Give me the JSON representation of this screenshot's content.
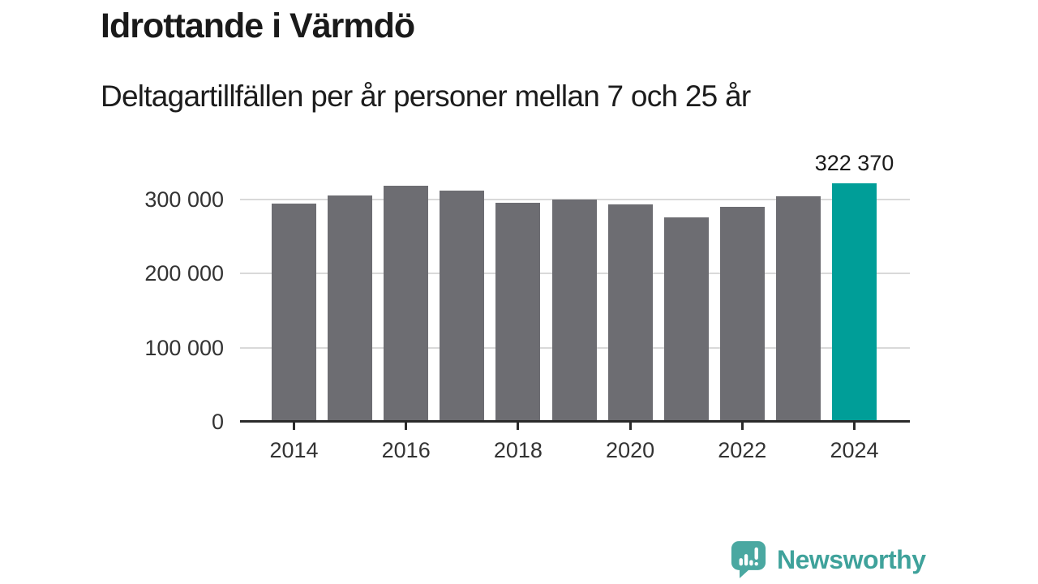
{
  "header": {
    "title": "Idrottande i Värmdö",
    "subtitle": "Deltagartillfällen per år personer mellan 7 och 25 år"
  },
  "chart_data": {
    "type": "bar",
    "title": "Idrottande i Värmdö",
    "subtitle": "Deltagartillfällen per år personer mellan 7 och 25 år",
    "categories": [
      2014,
      2015,
      2016,
      2017,
      2018,
      2019,
      2020,
      2021,
      2022,
      2023,
      2024
    ],
    "values": [
      294000,
      305000,
      319000,
      312000,
      295500,
      299500,
      293000,
      275500,
      290500,
      304500,
      322370
    ],
    "highlight_index": 10,
    "highlight_annotation": "322 370",
    "x_tick_labels": [
      "2014",
      "2016",
      "2018",
      "2020",
      "2022",
      "2024"
    ],
    "y_ticks": [
      {
        "value": 0,
        "label": "0"
      },
      {
        "value": 100000,
        "label": "100 000"
      },
      {
        "value": 200000,
        "label": "200 000"
      },
      {
        "value": 300000,
        "label": "300 000"
      }
    ],
    "ylim": [
      0,
      330000
    ],
    "grid": true,
    "legend": "none",
    "colors": {
      "bar": "#6d6d72",
      "highlight": "#009e98",
      "gridline": "#d9d9d9",
      "axis": "#2a2a2a",
      "axis_text": "#333333",
      "text": "#1a1a1a"
    }
  },
  "footer": {
    "brand": "Newsworthy",
    "brand_color": "#3fa29b",
    "logo_icon": "bar-chart-exclamation-speech-bubble-icon"
  }
}
